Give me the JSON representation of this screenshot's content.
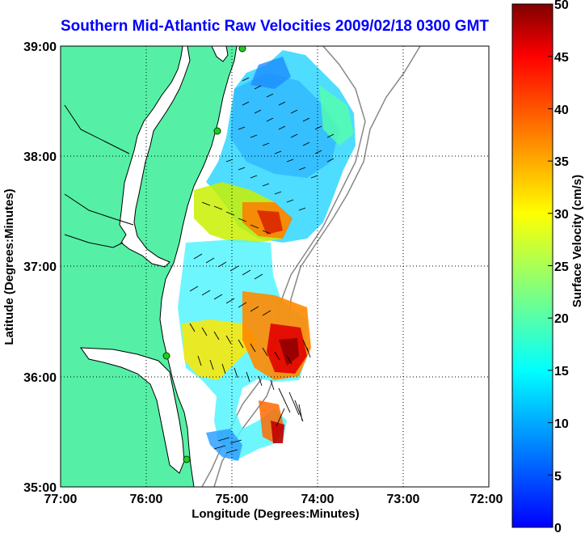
{
  "title": "Southern Mid-Atlantic Raw Velocities 2009/02/18 0300 GMT",
  "map": {
    "x_ticks": [
      "77:00",
      "76:00",
      "75:00",
      "74:00",
      "73:00",
      "72:00"
    ],
    "y_ticks": [
      "39:00",
      "38:00",
      "37:00",
      "36:00",
      "35:00"
    ],
    "xlabel": "Longitude (Degrees:Minutes)",
    "ylabel": "Latitude (Degrees:Minutes)",
    "lon_range": [
      -77,
      -72
    ],
    "lat_range": [
      35,
      39
    ],
    "grid": "dotted",
    "land_color": "#55f0a6"
  },
  "colorbar": {
    "label": "Surface Velocity (cm/s)",
    "ticks": [
      "50",
      "45",
      "40",
      "35",
      "30",
      "25",
      "20",
      "15",
      "10",
      "5",
      "0"
    ],
    "range": [
      0,
      50
    ],
    "units": "cm/s"
  },
  "colors": {
    "title": "#0000ff",
    "ocean": "#ffffff",
    "land": "#55f0a6"
  }
}
